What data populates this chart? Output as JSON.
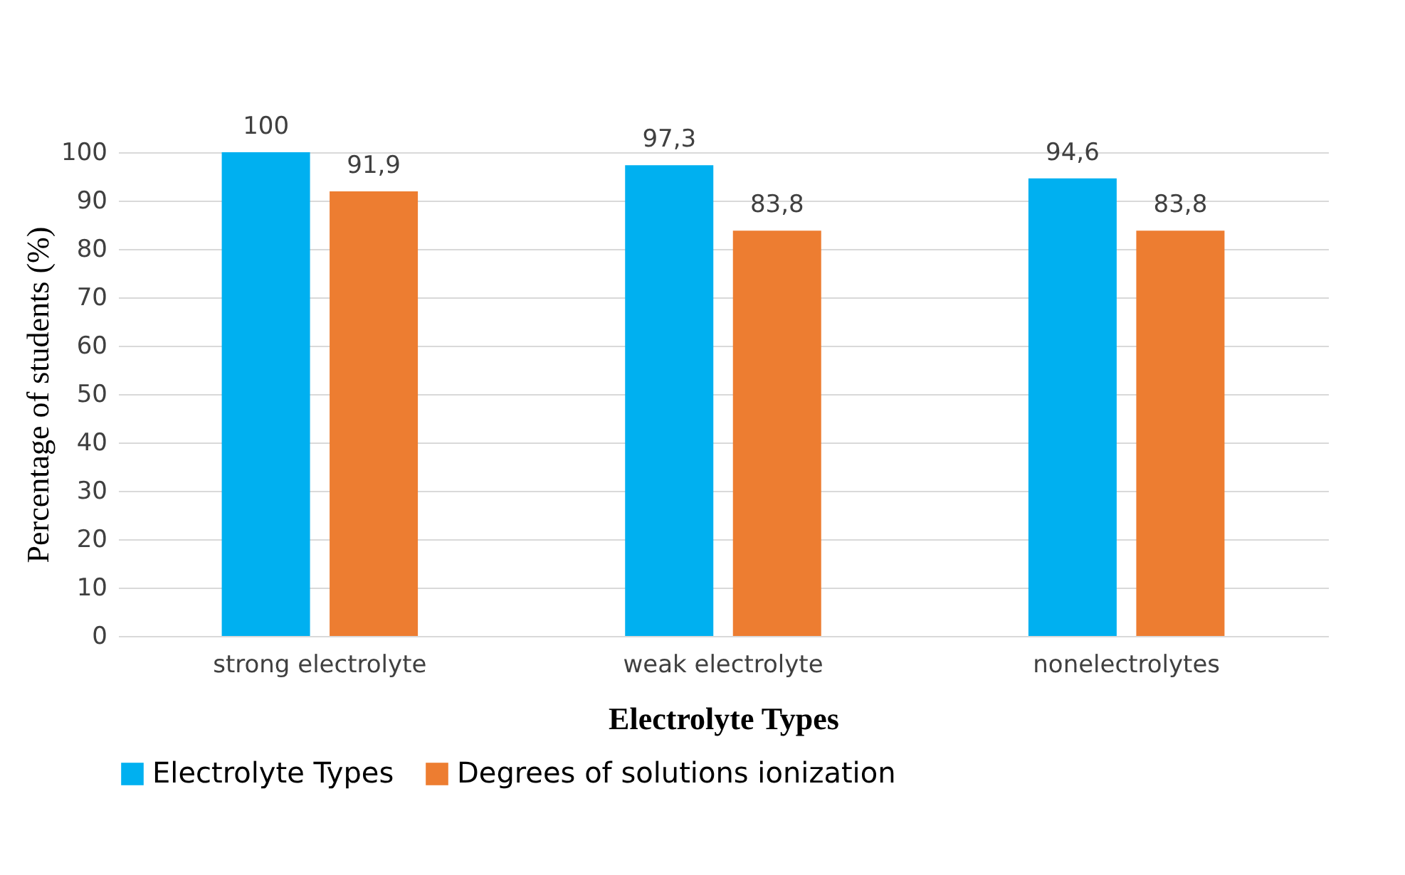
{
  "chart_data": {
    "type": "bar",
    "xlabel": "Electrolyte Types",
    "ylabel": "Percentage of students (%)",
    "categories": [
      "strong electrolyte",
      "weak electrolyte",
      "nonelectrolytes"
    ],
    "series": [
      {
        "name": "Electrolyte Types",
        "color": "#00b0f0",
        "values": [
          100,
          97.3,
          94.6
        ],
        "value_labels": [
          "100",
          "97,3",
          "94,6"
        ]
      },
      {
        "name": "Degrees of solutions ionization",
        "color": "#ed7d31",
        "values": [
          91.9,
          83.8,
          83.8
        ],
        "value_labels": [
          "91,9",
          "83,8",
          "83,8"
        ]
      }
    ],
    "ylim": [
      0,
      100
    ],
    "yticks": [
      0,
      10,
      20,
      30,
      40,
      50,
      60,
      70,
      80,
      90,
      100
    ],
    "grid": "y",
    "legend": "bottom"
  }
}
